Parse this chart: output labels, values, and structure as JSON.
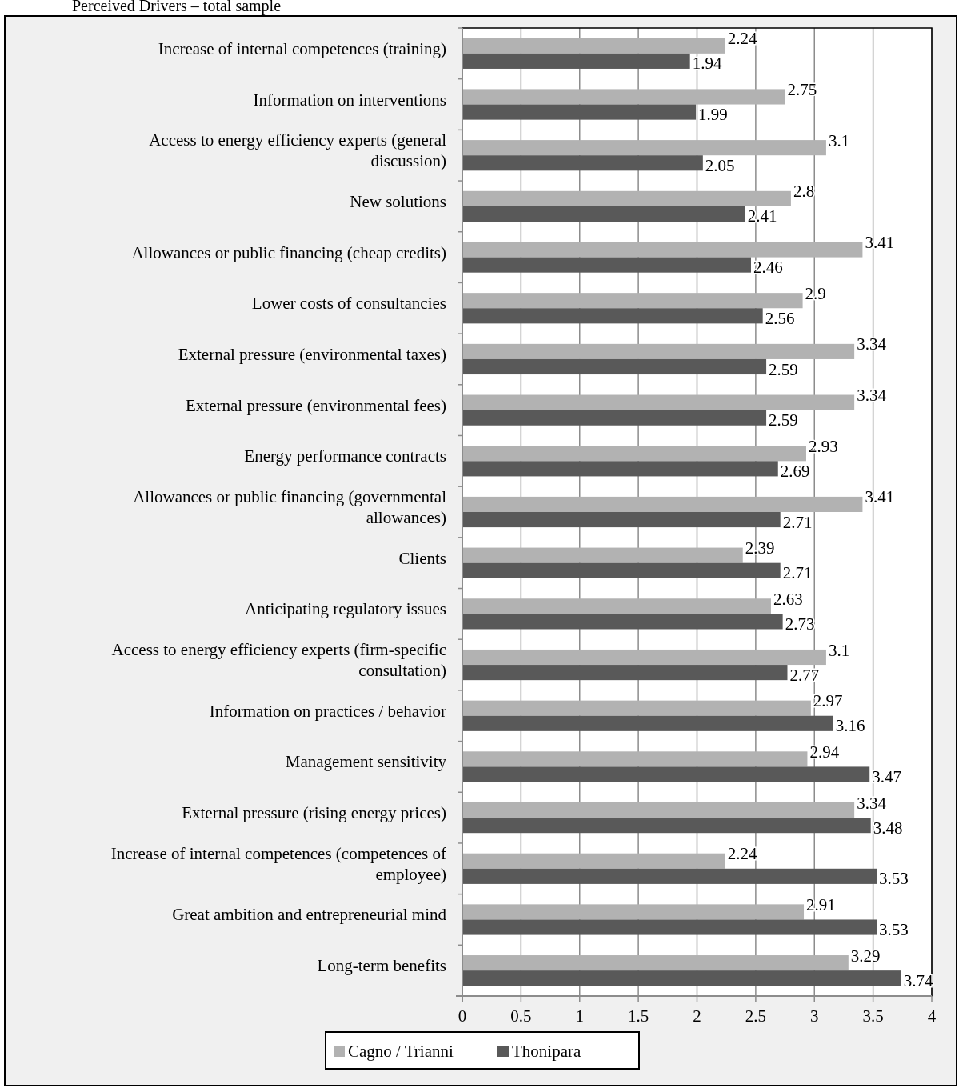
{
  "chart_data": {
    "type": "bar",
    "orientation": "horizontal",
    "title": "Perceived Drivers – total sample",
    "categories": [
      "Increase of internal competences (training)",
      "Information on interventions",
      "Access to energy efficiency experts (general discussion)",
      "New solutions",
      "Allowances or public financing (cheap credits)",
      "Lower costs of consultancies",
      "External pressure (environmental taxes)",
      "External pressure (environmental fees)",
      "Energy performance contracts",
      "Allowances or public financing (governmental allowances)",
      "Clients",
      "Anticipating regulatory issues",
      "Access to energy efficiency experts (firm-specific consultation)",
      "Information on practices / behavior",
      "Management sensitivity",
      "External pressure (rising energy prices)",
      "Increase of internal competences (competences of employee)",
      "Great ambition and entrepreneurial mind",
      "Long-term benefits"
    ],
    "series": [
      {
        "name": "Cagno / Trianni",
        "color": "#b2b2b2",
        "values": [
          2.24,
          2.75,
          3.1,
          2.8,
          3.41,
          2.9,
          3.34,
          3.34,
          2.93,
          3.41,
          2.39,
          2.63,
          3.1,
          2.97,
          2.94,
          3.34,
          2.24,
          2.91,
          3.29
        ]
      },
      {
        "name": "Thonipara",
        "color": "#595959",
        "values": [
          1.94,
          1.99,
          2.05,
          2.41,
          2.46,
          2.56,
          2.59,
          2.59,
          2.69,
          2.71,
          2.71,
          2.73,
          2.77,
          3.16,
          3.47,
          3.48,
          3.53,
          3.53,
          3.74
        ]
      }
    ],
    "xlim": [
      0,
      4
    ],
    "xticks": [
      0,
      {
        "value": 0.5,
        "label": "0.5"
      },
      1,
      {
        "value": 1.5,
        "label": "1.5"
      },
      2,
      {
        "value": 2.5,
        "label": "2.5"
      },
      3,
      {
        "value": 3.5,
        "label": "3.5"
      },
      4
    ],
    "grid": "x",
    "data_labels": true,
    "legend": "bottom"
  }
}
